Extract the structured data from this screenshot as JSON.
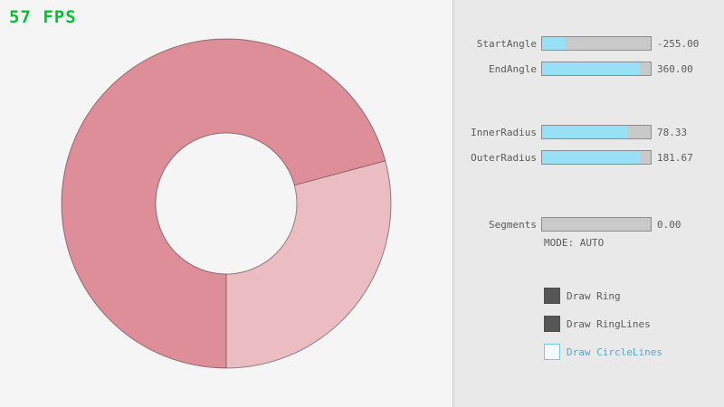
{
  "colors": {
    "bg-left": "#f5f5f5",
    "bg-panel": "#e9e9e9",
    "divider": "#cfcfcf",
    "fps": "#00c42e",
    "text": "#5a5a5a",
    "slider-fill": "#97e0f5",
    "slider-track": "#c9c9c9",
    "slider-border": "#8c8c8c",
    "checkbox-dark": "#565656",
    "blue-border": "#74c8e8",
    "blue-text": "#55a7cd",
    "ring-dark": "#de8e99",
    "ring-light": "#ecbcc3",
    "ring-line": "rgba(0,0,0,0.4)"
  },
  "fps": {
    "label": "57 FPS"
  },
  "ring": {
    "start_angle": -255.0,
    "end_angle": 360.0,
    "inner_radius": 78.33,
    "outer_radius": 181.67,
    "segments": 0
  },
  "panel": {
    "sliders": [
      {
        "label": "StartAngle",
        "value_text": "-255.00",
        "fill_pct": 21.7
      },
      {
        "label": "EndAngle",
        "value_text": "360.00",
        "fill_pct": 90.0
      },
      {
        "label": "InnerRadius",
        "value_text": "78.33",
        "fill_pct": 78.3
      },
      {
        "label": "OuterRadius",
        "value_text": "181.67",
        "fill_pct": 90.8
      },
      {
        "label": "Segments",
        "value_text": "0.00",
        "fill_pct": 0
      }
    ],
    "mode_text": "MODE: AUTO",
    "checkboxes": [
      {
        "label": "Draw Ring",
        "checked": true
      },
      {
        "label": "Draw RingLines",
        "checked": true
      },
      {
        "label": "Draw CircleLines",
        "checked": false
      }
    ]
  }
}
